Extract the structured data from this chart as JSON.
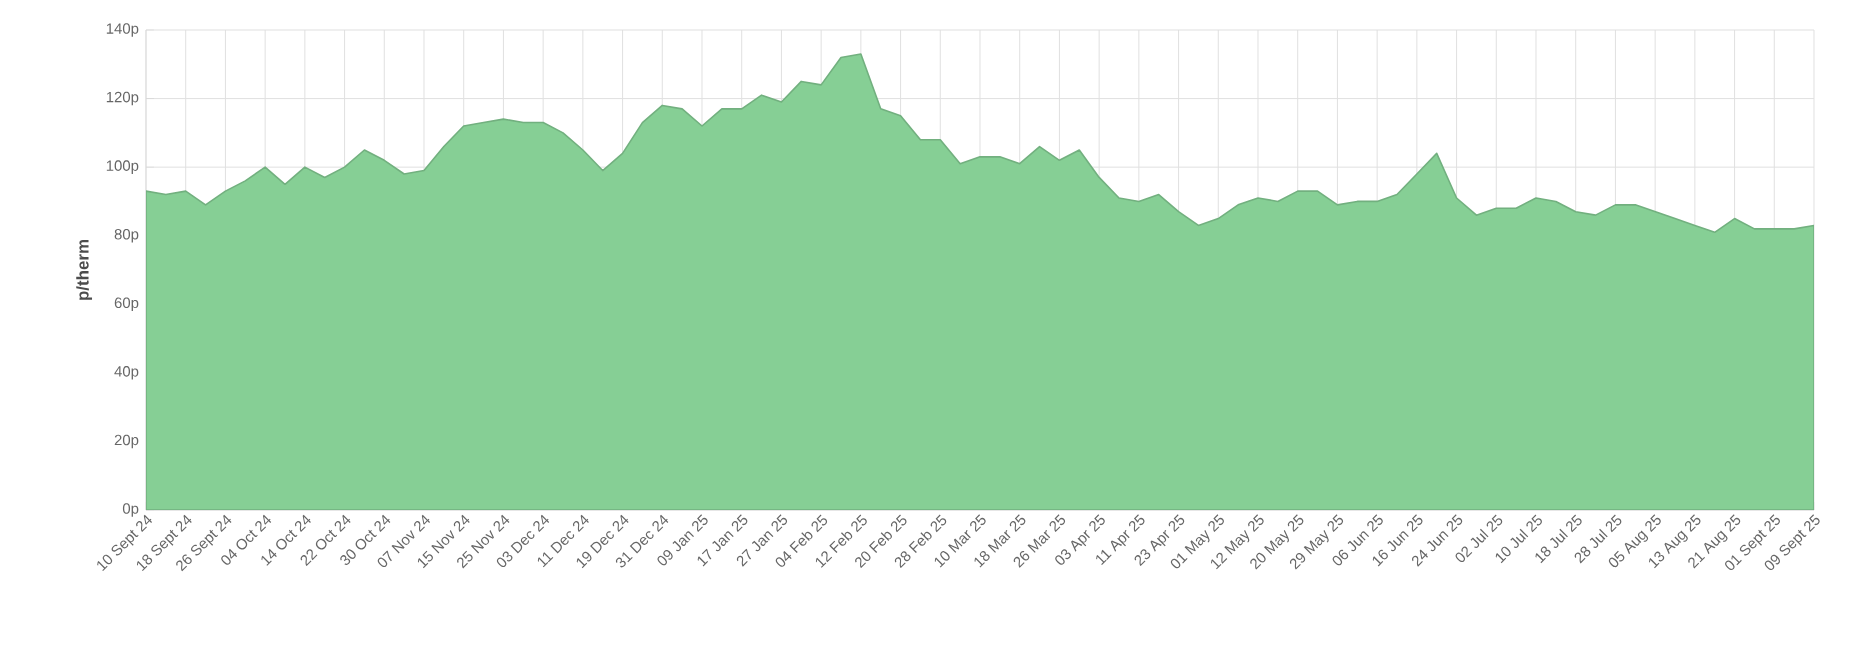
{
  "chart_data": {
    "type": "area",
    "ylabel": "p/therm",
    "color": "#86cf95",
    "grid": true,
    "ylim": [
      0,
      140
    ],
    "yticks": [
      {
        "value": 0,
        "label": "0p"
      },
      {
        "value": 20,
        "label": "20p"
      },
      {
        "value": 40,
        "label": "40p"
      },
      {
        "value": 60,
        "label": "60p"
      },
      {
        "value": 80,
        "label": "80p"
      },
      {
        "value": 100,
        "label": "100p"
      },
      {
        "value": 120,
        "label": "120p"
      },
      {
        "value": 140,
        "label": "140p"
      }
    ],
    "categories": [
      "10 Sept 24",
      null,
      "18 Sept 24",
      null,
      "26 Sept 24",
      null,
      "04 Oct 24",
      null,
      "14 Oct 24",
      null,
      "22 Oct 24",
      null,
      "30 Oct 24",
      null,
      "07 Nov 24",
      null,
      "15 Nov 24",
      null,
      "25 Nov 24",
      null,
      "03 Dec 24",
      null,
      "11 Dec 24",
      null,
      "19 Dec 24",
      null,
      "31 Dec 24",
      null,
      "09 Jan 25",
      null,
      "17 Jan 25",
      null,
      "27 Jan 25",
      null,
      "04 Feb 25",
      null,
      "12 Feb 25",
      null,
      "20 Feb 25",
      null,
      "28 Feb 25",
      null,
      "10 Mar 25",
      null,
      "18 Mar 25",
      null,
      "26 Mar 25",
      null,
      "03 Apr 25",
      null,
      "11 Apr 25",
      null,
      "23 Apr 25",
      null,
      "01 May 25",
      null,
      "12 May 25",
      null,
      "20 May 25",
      null,
      "29 May 25",
      null,
      "06 Jun 25",
      null,
      "16 Jun 25",
      null,
      "24 Jun 25",
      null,
      "02 Jul 25",
      null,
      "10 Jul 25",
      null,
      "18 Jul 25",
      null,
      "28 Jul 25",
      null,
      "05 Aug 25",
      null,
      "13 Aug 25",
      null,
      "21 Aug 25",
      null,
      "01 Sept 25",
      null,
      "09 Sept 25"
    ],
    "values": [
      93,
      92,
      93,
      89,
      93,
      96,
      100,
      95,
      100,
      97,
      100,
      105,
      102,
      98,
      99,
      106,
      112,
      113,
      114,
      113,
      113,
      110,
      105,
      99,
      104,
      113,
      118,
      117,
      112,
      117,
      117,
      121,
      119,
      125,
      124,
      132,
      133,
      117,
      115,
      108,
      108,
      101,
      103,
      103,
      101,
      106,
      102,
      105,
      97,
      91,
      90,
      92,
      87,
      83,
      85,
      89,
      91,
      90,
      93,
      93,
      89,
      90,
      90,
      92,
      98,
      104,
      91,
      86,
      88,
      88,
      91,
      90,
      87,
      86,
      89,
      89,
      87,
      85,
      83,
      81,
      85,
      82,
      82,
      82,
      83
    ]
  }
}
